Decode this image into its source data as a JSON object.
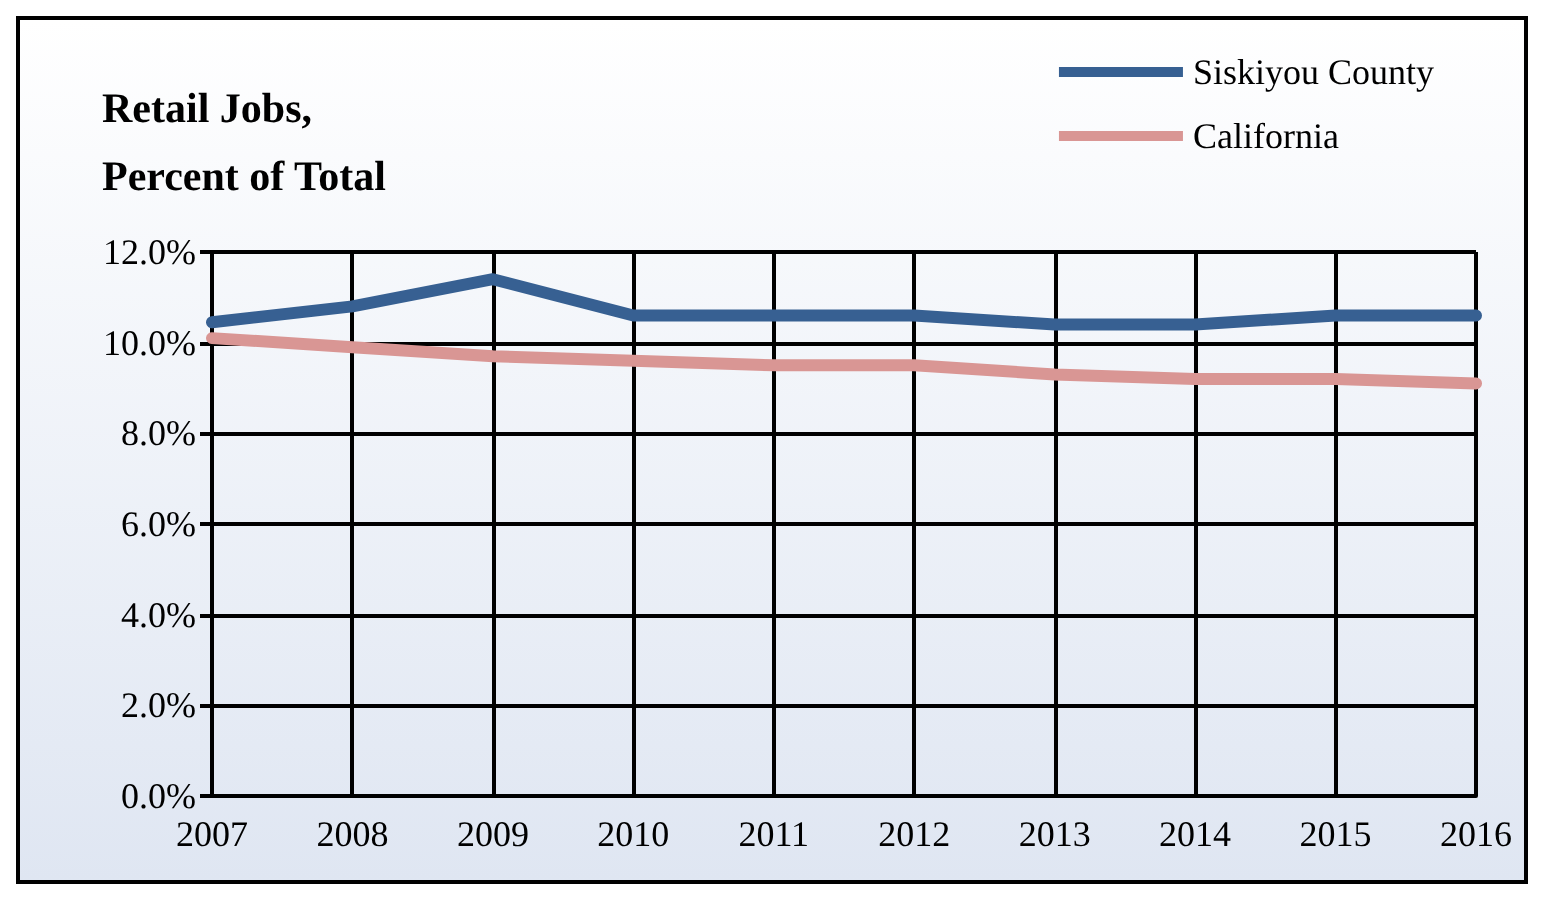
{
  "chart_data": {
    "type": "line",
    "title": "Retail Jobs,\nPercent of Total",
    "categories": [
      "2007",
      "2008",
      "2009",
      "2010",
      "2011",
      "2012",
      "2013",
      "2014",
      "2015",
      "2016"
    ],
    "series": [
      {
        "name": "Siskiyou County",
        "color": "#376092",
        "values": [
          10.45,
          10.8,
          11.4,
          10.6,
          10.6,
          10.6,
          10.4,
          10.4,
          10.6,
          10.6
        ]
      },
      {
        "name": "California",
        "color": "#d99694",
        "values": [
          10.1,
          9.9,
          9.7,
          9.6,
          9.5,
          9.5,
          9.3,
          9.2,
          9.2,
          9.1
        ]
      }
    ],
    "ylim": [
      0,
      12
    ],
    "yticks": [
      {
        "value": 0,
        "label": "0.0%"
      },
      {
        "value": 2,
        "label": "2.0%"
      },
      {
        "value": 4,
        "label": "4.0%"
      },
      {
        "value": 6,
        "label": "6.0%"
      },
      {
        "value": 8,
        "label": "8.0%"
      },
      {
        "value": 10,
        "label": "10.0%"
      },
      {
        "value": 12,
        "label": "12.0%"
      }
    ],
    "grid": true,
    "legend": "top right",
    "marker": "none",
    "line_style": "solid"
  }
}
